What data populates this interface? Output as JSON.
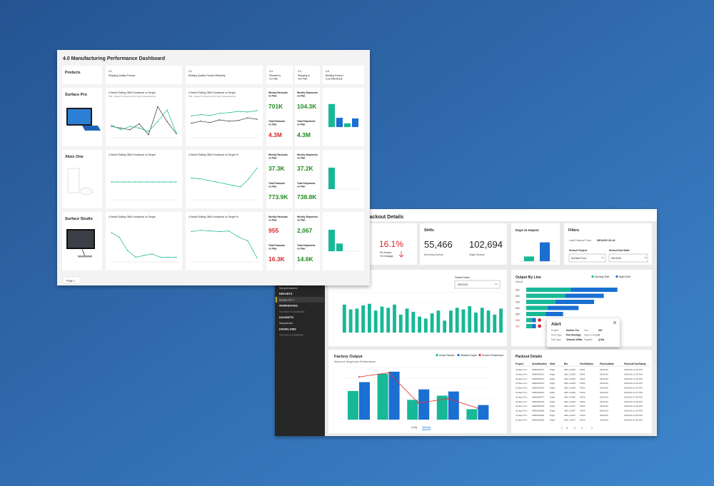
{
  "background_window": {
    "title": "4.0 Manufacturing Performance Dashboard",
    "page_tab": "Page 1",
    "headers": [
      {
        "lines": [
          "Products"
        ]
      },
      {
        "code": "4.1",
        "lines": [
          "Shipping Quality Product"
        ]
      },
      {
        "code": "4.2",
        "lines": [
          "Building Quality Product Efficiently"
        ]
      },
      {
        "code": "4.3",
        "lines": [
          "Planned to",
          "Go Plan"
        ]
      },
      {
        "code": "4.4",
        "lines": [
          "Shipping to",
          "Our Plan"
        ]
      },
      {
        "code": "4.5",
        "lines": [
          "Building Product",
          "Cost Effectively"
        ]
      }
    ],
    "rows": [
      {
        "product": "Surface Pro",
        "charts": [
          {
            "title": "4 Week Rolling OBA Functional vs Target",
            "subtitle": "FPB - Surface Pro4 Model Confirm Beta (Chassis/Screen)",
            "ylim": [
              0,
              100
            ],
            "series": [
              {
                "color": "#333333",
                "values": [
                  30,
                  25,
                  20,
                  38,
                  5,
                  90,
                  45,
                  8
                ]
              },
              {
                "color": "#17b897",
                "values": [
                  35,
                  20,
                  30,
                  25,
                  15,
                  45,
                  80,
                  10
                ]
              }
            ]
          },
          {
            "title": "4 Week Rolling OBA Functional vs Target",
            "subtitle": "FPB - Surface Pro4 Model Confirm Beta (Chassis/Screen)",
            "ylim": [
              0,
              100
            ],
            "series": [
              {
                "color": "#17b897",
                "values": [
                  62,
                  66,
                  64,
                  70,
                  72,
                  76,
                  74,
                  78
                ]
              },
              {
                "color": "#333333",
                "values": [
                  40,
                  46,
                  42,
                  50,
                  46,
                  48,
                  56,
                  52
                ]
              }
            ]
          }
        ],
        "kpis": [
          [
            {
              "lines": [
                "Weekly Packouts",
                "vs Plan"
              ],
              "value": "701K",
              "color": "#1f8a1f"
            },
            {
              "lines": [
                "Total Packouts",
                "vs Plan"
              ],
              "value": "4.3M",
              "color": "#d9262c"
            }
          ],
          [
            {
              "lines": [
                "Weekly Shipments",
                "vs Plan"
              ],
              "value": "104.3K",
              "color": "#1f8a1f"
            },
            {
              "lines": [
                "Total Shipments",
                "vs Plan"
              ],
              "value": "4.3M",
              "color": "#1f8a1f"
            }
          ]
        ],
        "bars": {
          "ylim": [
            0,
            100
          ],
          "items": [
            {
              "value": 75,
              "color": "#17b897"
            },
            {
              "value": 30,
              "color": "#1a6fd1"
            },
            {
              "value": 12,
              "color": "#17b897"
            },
            {
              "value": 28,
              "color": "#1a6fd1"
            }
          ]
        }
      },
      {
        "product": "Xbox One",
        "charts": [
          {
            "title": "4 Week Rolling OBA Functional vs Target",
            "ylim": [
              0,
              100
            ],
            "series": [
              {
                "color": "#17b897",
                "values": [
                  50,
                  50,
                  50,
                  50,
                  50,
                  50,
                  50,
                  50,
                  50,
                  50,
                  50,
                  50
                ]
              }
            ]
          },
          {
            "title": "4 Week Rolling OBA Functional vs Target %",
            "ylim": [
              0,
              100
            ],
            "series": [
              {
                "color": "#17b897",
                "values": [
                  62,
                  60,
                  55,
                  50,
                  45,
                  40,
                  35,
                  60,
                  92
                ]
              }
            ]
          }
        ],
        "kpis": [
          [
            {
              "lines": [
                "Weekly Packouts",
                "vs Plan"
              ],
              "value": "37.3K",
              "color": "#1f8a1f"
            },
            {
              "lines": [
                "Total Packouts",
                "vs Plan"
              ],
              "value": "773.9K",
              "color": "#1f8a1f"
            }
          ],
          [
            {
              "lines": [
                "Weekly Shipments",
                "vs Plan"
              ],
              "value": "37.2K",
              "color": "#1f8a1f"
            },
            {
              "lines": [
                "Total Shipments",
                "vs Plan"
              ],
              "value": "738.8K",
              "color": "#1f8a1f"
            }
          ]
        ],
        "bars": {
          "ylim": [
            0,
            100
          ],
          "items": [
            {
              "value": 70,
              "color": "#17b897"
            }
          ]
        }
      },
      {
        "product": "Surface Studio",
        "charts": [
          {
            "title": "4 Week Rolling OBA Functional vs Target",
            "ylim": [
              0,
              100
            ],
            "series": [
              {
                "color": "#17b897",
                "values": [
                  85,
                  70,
                  30,
                  10,
                  15,
                  20,
                  10,
                  10,
                  10
                ]
              }
            ]
          },
          {
            "title": "4 Week Rolling OBA Functional vs Target %",
            "ylim": [
              0,
              100
            ],
            "series": [
              {
                "color": "#17b897",
                "values": [
                  88,
                  92,
                  90,
                  88,
                  90,
                  72,
                  60,
                  8
                ]
              }
            ]
          }
        ],
        "kpis": [
          [
            {
              "lines": [
                "Weekly Packouts",
                "vs Plan"
              ],
              "value": "955",
              "color": "#d9262c"
            },
            {
              "lines": [
                "Total Packouts",
                "vs Plan"
              ],
              "value": "16.3K",
              "color": "#d9262c"
            }
          ],
          [
            {
              "lines": [
                "Weekly Shipments",
                "vs Plan"
              ],
              "value": "2,067",
              "color": "#1f8a1f"
            },
            {
              "lines": [
                "Total Shipments",
                "vs Plan"
              ],
              "value": "14.6K",
              "color": "#1f8a1f"
            }
          ]
        ],
        "bars": {
          "ylim": [
            0,
            100
          ],
          "items": [
            {
              "value": 70,
              "color": "#17b897"
            },
            {
              "value": 25,
              "color": "#17b897"
            }
          ]
        }
      }
    ]
  },
  "front_window": {
    "title": "Packout Details",
    "sidebar": [
      {
        "text": "SampleDataview",
        "kind": "item"
      },
      {
        "text": "REPORTS",
        "kind": "heading"
      },
      {
        "text": "Surface Pro 4",
        "kind": "active"
      },
      {
        "text": "WORKBOOKS",
        "kind": "heading"
      },
      {
        "text": "You have no workbooks",
        "kind": "note"
      },
      {
        "text": "DATASETS",
        "kind": "heading"
      },
      {
        "text": "SampleData",
        "kind": "item"
      },
      {
        "text": "DATAFLOWS",
        "kind": "heading"
      },
      {
        "text": "You have no dataflows",
        "kind": "note"
      }
    ],
    "change": {
      "value": "16.1%",
      "lines": [
        "24 Hours",
        "% Change"
      ]
    },
    "shifts": {
      "title": "Shifts",
      "items": [
        {
          "value": "55,466",
          "label": "Morning Actual"
        },
        {
          "value": "102,694",
          "label": "Night Actual"
        }
      ]
    },
    "days_to_impact": {
      "title": "Days to Impact",
      "ylim": [
        0,
        10
      ],
      "values": [
        2,
        8
      ],
      "colors": [
        "#17b897",
        "#1a6fd1"
      ]
    },
    "filters": {
      "title": "Filters",
      "last_label": "Last Packout Time",
      "last_value": "09/12/20 22:14",
      "project_label": "Select Project",
      "project_value": "Surface Pro4",
      "date_label": "Select End Date",
      "date_value": "09/15/20"
    },
    "daily": {
      "select_label": "Select Date",
      "select_value": "09/12/20",
      "ylim": [
        0,
        100
      ],
      "color": "#17b897",
      "values": [
        70,
        58,
        60,
        68,
        72,
        55,
        65,
        62,
        70,
        45,
        60,
        52,
        40,
        35,
        48,
        55,
        30,
        55,
        62,
        58,
        66,
        50,
        62,
        55,
        45,
        60
      ]
    },
    "output_by_line": {
      "title": "Output By Line",
      "subtitle": "Actual",
      "legend": [
        {
          "name": "Morning Shift",
          "color": "#17b897"
        },
        {
          "name": "Night Shift",
          "color": "#1a6fd1"
        }
      ],
      "categories": [
        "001",
        "002",
        "003",
        "004",
        "005",
        "006",
        "007"
      ],
      "xlim": [
        0,
        60
      ],
      "morning": [
        23,
        20,
        15,
        11,
        10,
        3,
        3
      ],
      "night": [
        24,
        20,
        20,
        16,
        9,
        2,
        2
      ]
    },
    "alert": {
      "title": "Alert",
      "fields": [
        [
          "Project",
          "Surface Pro"
        ],
        [
          "Line",
          "002"
        ],
        [
          "Root Type",
          "Part Shortage"
        ],
        [
          "Days to Impact",
          "2"
        ],
        [
          "Part Type",
          "Chassis-100ba"
        ],
        [
          "Supplier",
          "Q-Sis"
        ]
      ]
    },
    "factory_output": {
      "title": "Factory Output",
      "subtitle": "Actual vs Target plus Performance",
      "ylim": [
        0,
        100
      ],
      "y2lim": [
        0,
        100
      ],
      "series": [
        {
          "name": "Actual Packout",
          "color": "#17b897",
          "values": [
            55,
            88,
            38,
            46,
            20
          ]
        },
        {
          "name": "Standard Target",
          "color": "#1a6fd1",
          "values": [
            72,
            92,
            58,
            54,
            28
          ]
        },
        {
          "name": "Percent Performance",
          "color": "#e03a3e",
          "axis": "y2",
          "values": [
            82,
            90,
            32,
            40,
            22
          ]
        }
      ],
      "tabs": [
        "Daily",
        "Weekly"
      ]
    },
    "packout_details": {
      "title": "Packout Details",
      "columns": [
        "Project",
        "SerialNumber",
        "Shift",
        "Bin",
        "PackStation",
        "PackoutDate",
        "PackoutTimeStamp"
      ],
      "rows": [
        [
          "Surface Pro",
          "0098345671",
          "Night",
          "ABC-12345",
          "PS01",
          "09/11/20",
          "09/11/20 11:45 PM"
        ],
        [
          "Surface Pro",
          "0098345672",
          "Night",
          "ABC-12345",
          "PS01",
          "09/11/20",
          "09/11/20 11:45 PM"
        ],
        [
          "Surface Pro",
          "0098345673",
          "Night",
          "ABC-12345",
          "PS01",
          "09/11/20",
          "09/11/20 11:46 PM"
        ],
        [
          "Surface Pro",
          "0098345674",
          "Night",
          "ABC-12345",
          "PS02",
          "09/11/20",
          "09/11/20 11:46 PM"
        ],
        [
          "Surface Pro",
          "0098345675",
          "Night",
          "ABC-12346",
          "PS02",
          "09/11/20",
          "09/11/20 11:47 PM"
        ],
        [
          "Surface Pro",
          "0098345676",
          "Night",
          "ABC-12346",
          "PS02",
          "09/11/20",
          "09/11/20 11:47 PM"
        ],
        [
          "Surface Pro",
          "0098345677",
          "Night",
          "ABC-12346",
          "PS03",
          "09/11/20",
          "09/11/20 11:48 PM"
        ],
        [
          "Surface Pro",
          "0098345678",
          "Night",
          "ABC-12346",
          "PS03",
          "09/11/20",
          "09/11/20 11:48 PM"
        ],
        [
          "Surface Pro",
          "0098345679",
          "Night",
          "ABC-12347",
          "PS03",
          "09/11/20",
          "09/11/20 11:49 PM"
        ],
        [
          "Surface Pro",
          "0098345680",
          "Night",
          "ABC-12347",
          "PS04",
          "09/11/20",
          "09/11/20 11:49 PM"
        ],
        [
          "Surface Pro",
          "0098345681",
          "Night",
          "ABC-12347",
          "PS04",
          "09/11/20",
          "09/11/20 11:50 PM"
        ],
        [
          "Surface Pro",
          "0098345682",
          "Night",
          "ABC-12347",
          "PS04",
          "09/11/20",
          "09/11/20 11:50 PM"
        ]
      ],
      "pages": [
        "1",
        "2",
        "3"
      ]
    }
  }
}
